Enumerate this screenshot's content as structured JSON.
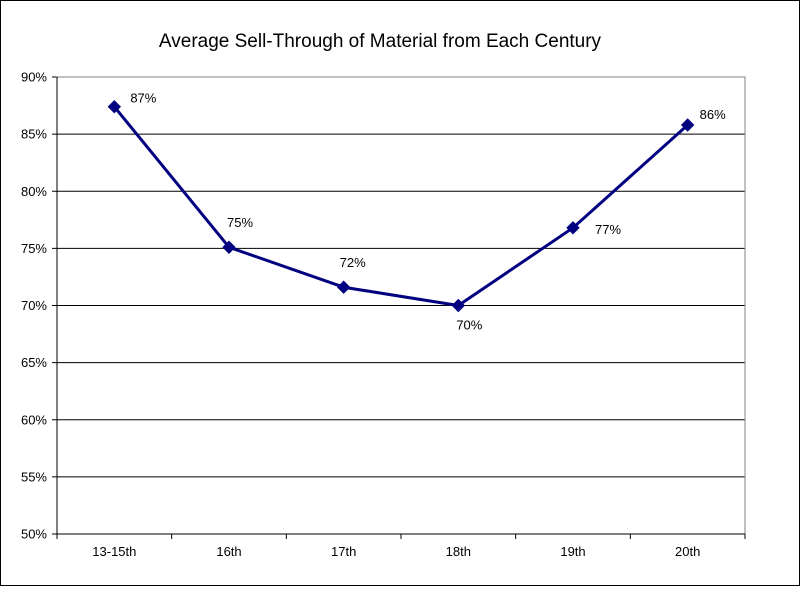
{
  "chart_data": {
    "type": "line",
    "title": "Average Sell-Through of Material from Each Century",
    "xlabel": "",
    "ylabel": "",
    "categories": [
      "13-15th",
      "16th",
      "17th",
      "18th",
      "19th",
      "20th"
    ],
    "series": [
      {
        "values": [
          87.4,
          75.1,
          71.6,
          70.0,
          76.8,
          85.8
        ],
        "data_labels": [
          "87%",
          "75%",
          "72%",
          "70%",
          "77%",
          "86%"
        ],
        "color": "#000080"
      }
    ],
    "ylim": [
      50,
      90
    ],
    "yticks": [
      "50%",
      "55%",
      "60%",
      "65%",
      "70%",
      "75%",
      "80%",
      "85%",
      "90%"
    ],
    "grid": true,
    "legend": "none"
  }
}
